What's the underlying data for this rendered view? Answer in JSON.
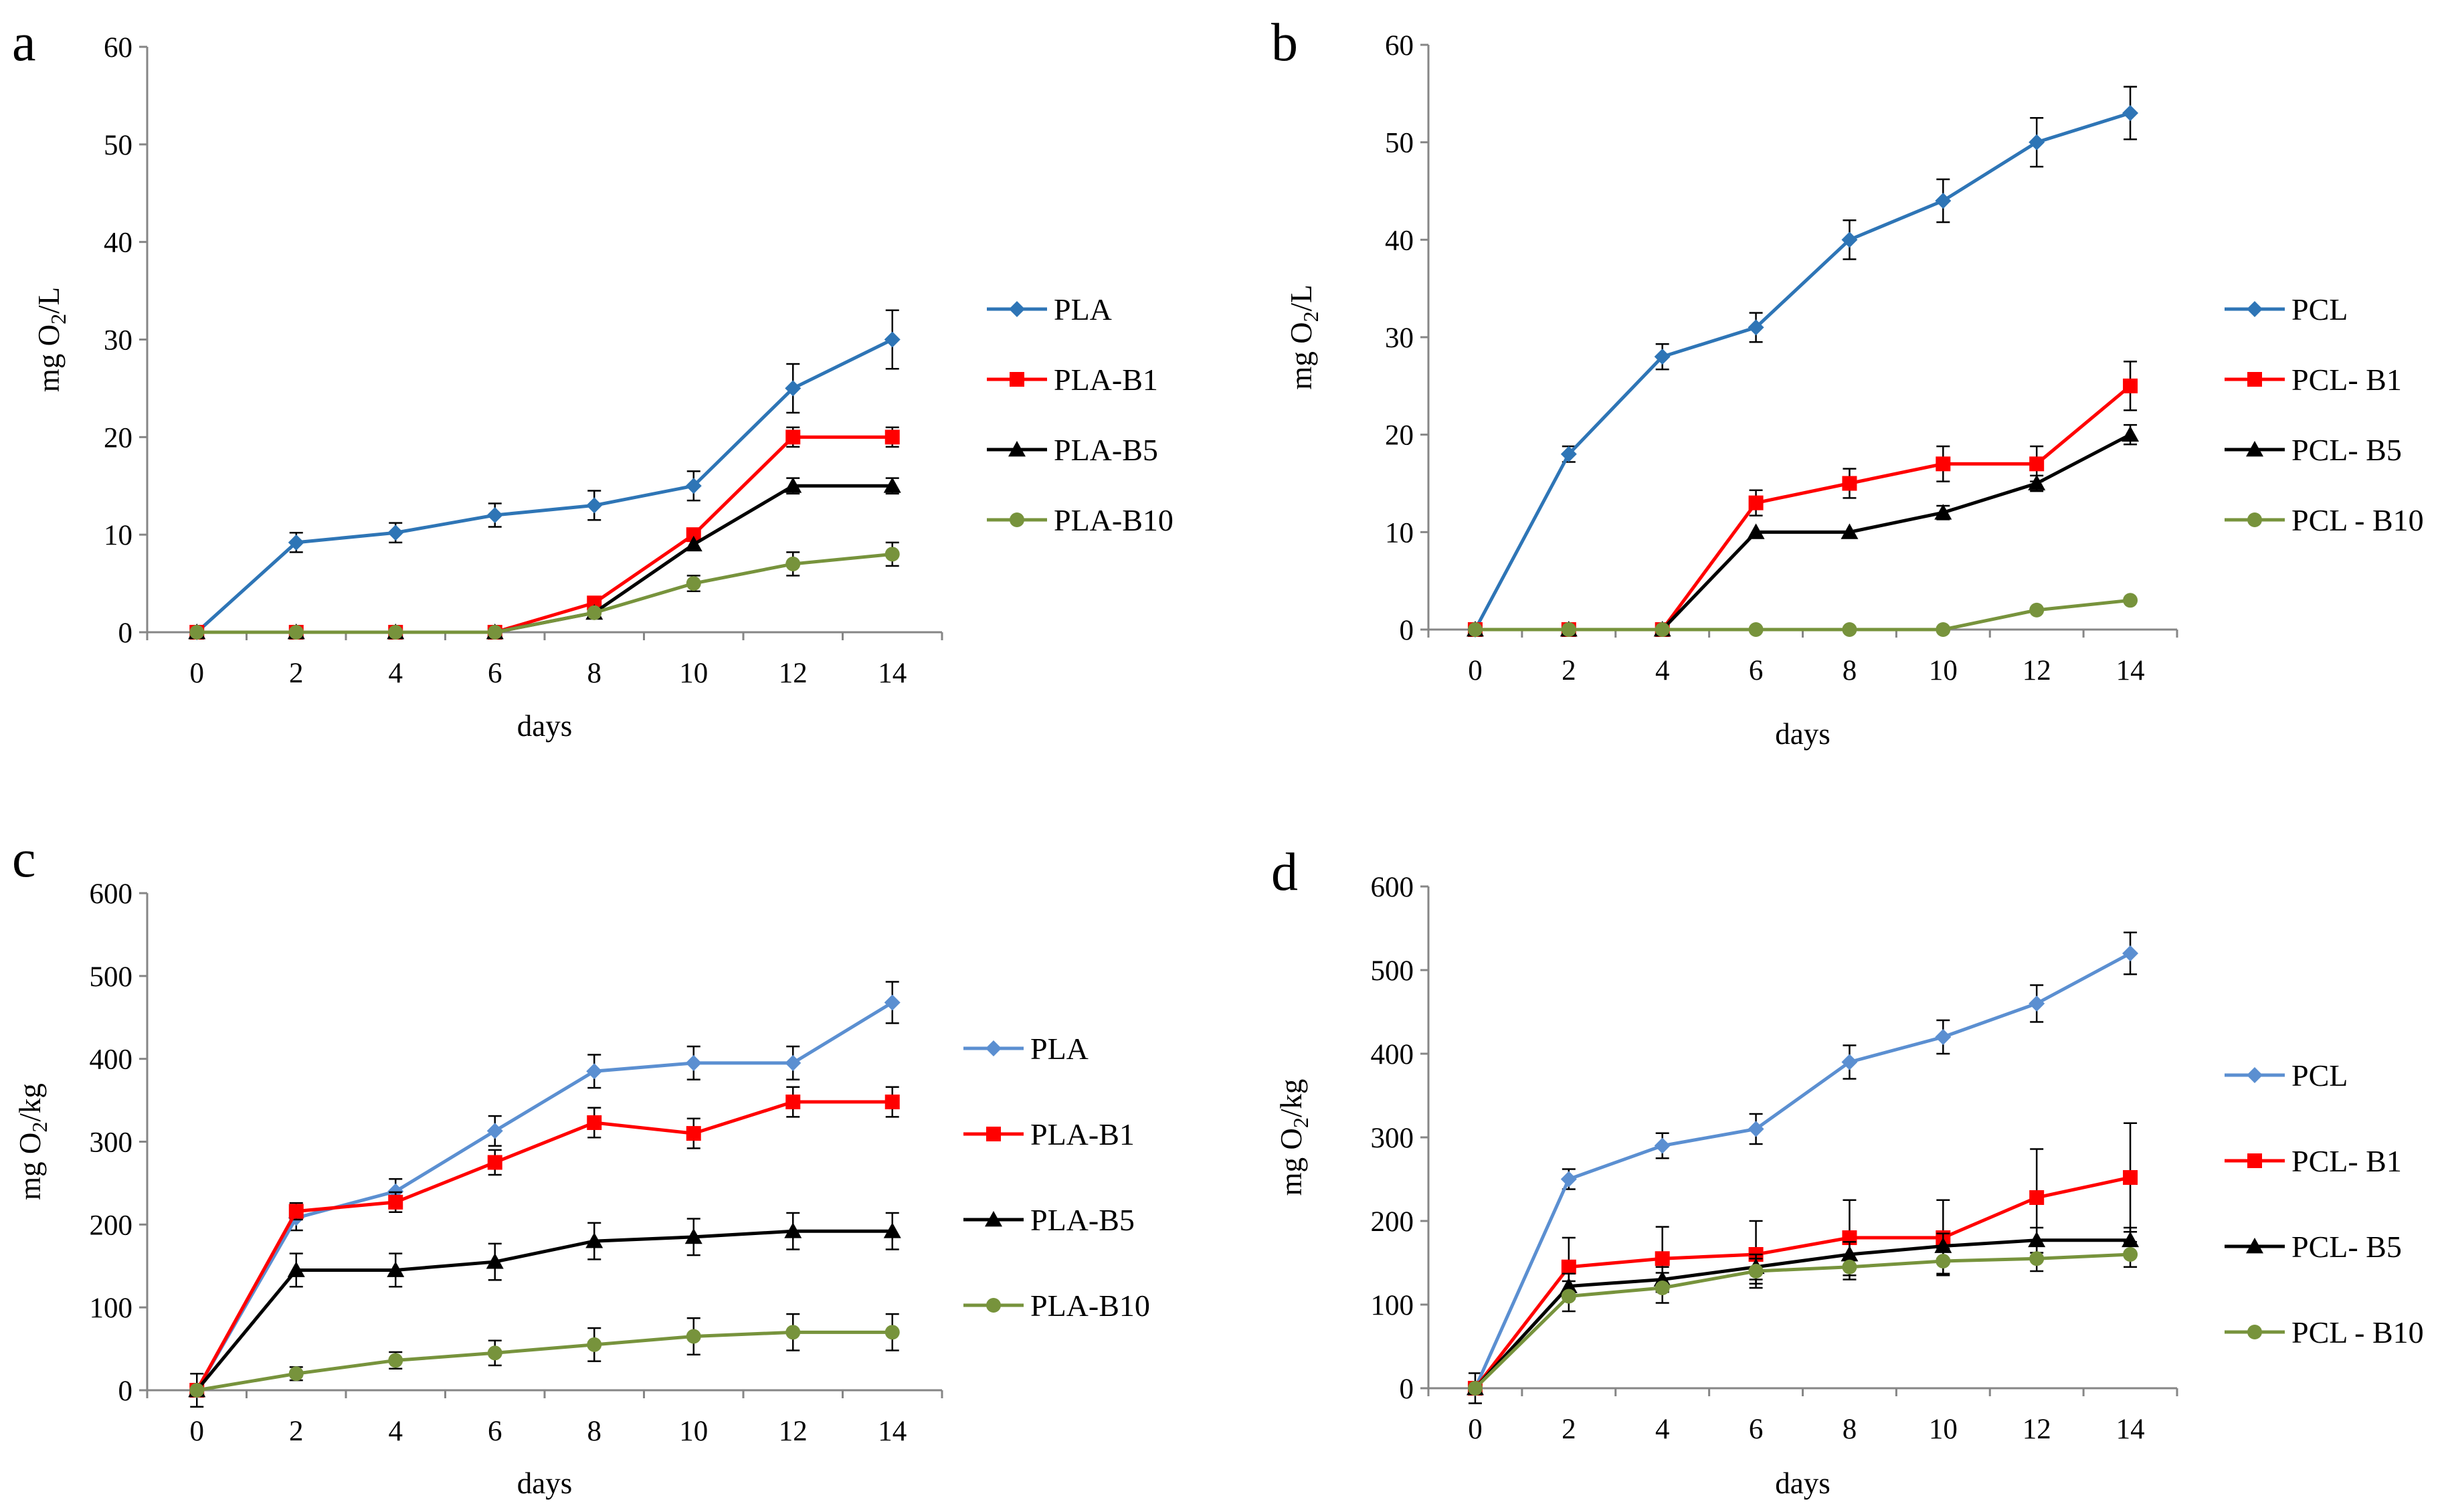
{
  "chart_data": [
    {
      "id": "a",
      "panel_label": "a",
      "type": "line",
      "xlabel": "days",
      "ylabel": "mg O2/L",
      "ylabel_main": "mg O",
      "ylabel_sub": "2",
      "ylabel_rest": "/L",
      "x": [
        0,
        2,
        4,
        6,
        8,
        10,
        12,
        14
      ],
      "ylim": [
        0,
        60
      ],
      "yticks": [
        0,
        10,
        20,
        30,
        40,
        50,
        60
      ],
      "series": [
        {
          "name": "PLA",
          "color": "#2e75b6",
          "marker": "diamond",
          "values": [
            0,
            9.2,
            10.2,
            12,
            13,
            15,
            25,
            30
          ],
          "errors": [
            0,
            1,
            1,
            1.2,
            1.5,
            1.5,
            2.5,
            3
          ]
        },
        {
          "name": "PLA-B1",
          "color": "#ff0000",
          "marker": "square",
          "values": [
            0,
            0,
            0,
            0,
            3,
            10,
            20,
            20
          ],
          "errors": [
            0,
            0,
            0,
            0,
            0,
            0,
            1,
            1
          ]
        },
        {
          "name": "PLA-B5",
          "color": "#000000",
          "marker": "triangle",
          "values": [
            0,
            0,
            0,
            0,
            2,
            9,
            15,
            15
          ],
          "errors": [
            0,
            0,
            0,
            0,
            0,
            0,
            0.8,
            0.8
          ]
        },
        {
          "name": "PLA-B10",
          "color": "#77933c",
          "marker": "circle",
          "values": [
            0,
            0,
            0,
            0,
            2,
            5,
            7,
            8
          ],
          "errors": [
            0,
            0,
            0,
            0,
            0,
            0.8,
            1.2,
            1.2
          ]
        }
      ]
    },
    {
      "id": "b",
      "panel_label": "b",
      "type": "line",
      "xlabel": "days",
      "ylabel": "mg O2/L",
      "ylabel_main": "mg O",
      "ylabel_sub": "2",
      "ylabel_rest": "/L",
      "x": [
        0,
        2,
        4,
        6,
        8,
        10,
        12,
        14
      ],
      "ylim": [
        0,
        60
      ],
      "yticks": [
        0,
        10,
        20,
        30,
        40,
        50,
        60
      ],
      "series": [
        {
          "name": "PCL",
          "color": "#2e75b6",
          "marker": "diamond",
          "values": [
            0,
            18,
            28,
            31,
            40,
            44,
            50,
            53
          ],
          "errors": [
            0,
            0.8,
            1.3,
            1.5,
            2,
            2.2,
            2.5,
            2.7
          ]
        },
        {
          "name": "PCL- B1",
          "color": "#ff0000",
          "marker": "square",
          "values": [
            0,
            0,
            0,
            13,
            15,
            17,
            17,
            25
          ],
          "errors": [
            0,
            0,
            0,
            1.3,
            1.5,
            1.8,
            1.8,
            2.5
          ]
        },
        {
          "name": "PCL- B5",
          "color": "#000000",
          "marker": "triangle",
          "values": [
            0,
            0,
            0,
            10,
            10,
            12,
            15,
            20
          ],
          "errors": [
            0,
            0,
            0,
            0,
            0,
            0.7,
            0.8,
            1
          ]
        },
        {
          "name": "PCL - B10",
          "color": "#77933c",
          "marker": "circle",
          "values": [
            0,
            0,
            0,
            0,
            0,
            0,
            2,
            3
          ],
          "errors": [
            0,
            0,
            0,
            0,
            0,
            0,
            0,
            0
          ]
        }
      ]
    },
    {
      "id": "c",
      "panel_label": "c",
      "type": "line",
      "xlabel": "days",
      "ylabel": "mg O2/kg",
      "ylabel_main": "mg O",
      "ylabel_sub": "2",
      "ylabel_rest": "/kg",
      "x": [
        0,
        2,
        4,
        6,
        8,
        10,
        12,
        14
      ],
      "ylim": [
        0,
        600
      ],
      "yticks": [
        0,
        100,
        200,
        300,
        400,
        500,
        600
      ],
      "series": [
        {
          "name": "PLA",
          "color": "#5b8fd1",
          "marker": "diamond",
          "values": [
            0,
            208,
            240,
            313,
            385,
            395,
            395,
            468
          ],
          "errors": [
            20,
            15,
            15,
            18,
            20,
            20,
            20,
            25
          ]
        },
        {
          "name": "PLA-B1",
          "color": "#ff0000",
          "marker": "square",
          "values": [
            0,
            216,
            227,
            275,
            323,
            310,
            348,
            348
          ],
          "errors": [
            0,
            10,
            12,
            15,
            18,
            18,
            18,
            18
          ]
        },
        {
          "name": "PLA-B5",
          "color": "#000000",
          "marker": "triangle",
          "values": [
            0,
            145,
            145,
            155,
            180,
            185,
            192,
            192
          ],
          "errors": [
            0,
            20,
            20,
            22,
            22,
            22,
            22,
            22
          ]
        },
        {
          "name": "PLA-B10",
          "color": "#77933c",
          "marker": "circle",
          "values": [
            0,
            20,
            36,
            45,
            55,
            65,
            70,
            70
          ],
          "errors": [
            0,
            8,
            10,
            15,
            20,
            22,
            22,
            22
          ]
        }
      ]
    },
    {
      "id": "d",
      "panel_label": "d",
      "type": "line",
      "xlabel": "days",
      "ylabel": "mg O2/kg",
      "ylabel_main": "mg O",
      "ylabel_sub": "2",
      "ylabel_rest": "/kg",
      "x": [
        0,
        2,
        4,
        6,
        8,
        10,
        12,
        14
      ],
      "ylim": [
        0,
        600
      ],
      "yticks": [
        0,
        100,
        200,
        300,
        400,
        500,
        600
      ],
      "series": [
        {
          "name": "PCL",
          "color": "#5b8fd1",
          "marker": "diamond",
          "values": [
            0,
            250,
            290,
            310,
            390,
            420,
            460,
            520
          ],
          "errors": [
            18,
            12,
            15,
            18,
            20,
            20,
            22,
            25
          ]
        },
        {
          "name": "PCL- B1",
          "color": "#ff0000",
          "marker": "square",
          "values": [
            0,
            145,
            155,
            160,
            180,
            180,
            228,
            252
          ],
          "errors": [
            0,
            35,
            38,
            40,
            45,
            45,
            58,
            65
          ]
        },
        {
          "name": "PCL- B5",
          "color": "#000000",
          "marker": "triangle",
          "values": [
            0,
            122,
            130,
            145,
            160,
            170,
            177,
            177
          ],
          "errors": [
            0,
            15,
            15,
            15,
            15,
            15,
            15,
            15
          ]
        },
        {
          "name": "PCL - B10",
          "color": "#77933c",
          "marker": "circle",
          "values": [
            0,
            110,
            120,
            140,
            145,
            152,
            155,
            160
          ],
          "errors": [
            0,
            18,
            18,
            15,
            15,
            15,
            15,
            15
          ]
        }
      ]
    }
  ]
}
